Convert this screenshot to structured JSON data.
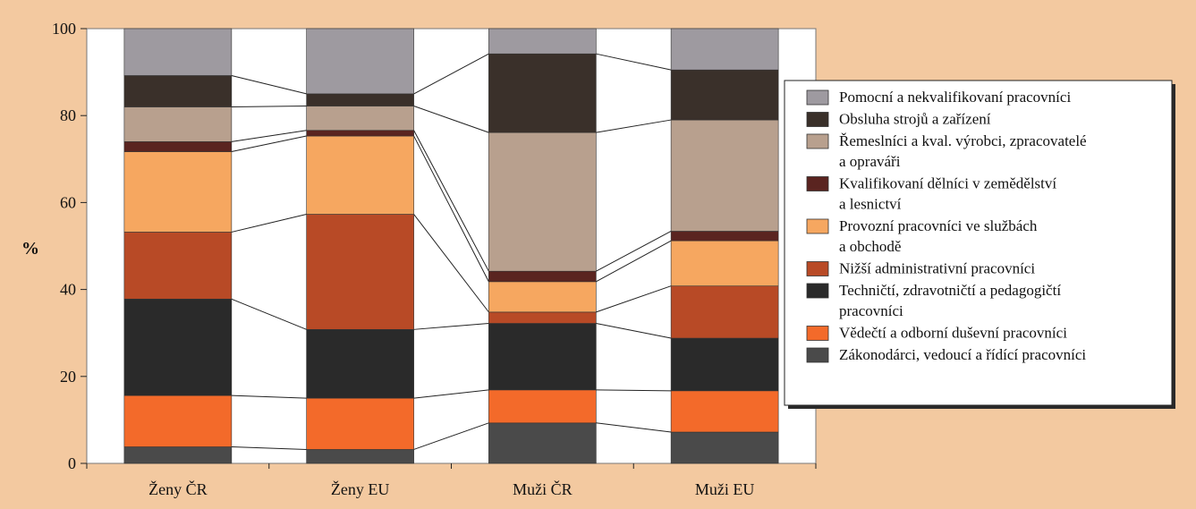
{
  "chart_data": {
    "type": "bar",
    "stacked": true,
    "title": "",
    "xlabel": "",
    "ylabel": "%",
    "ylim": [
      0,
      100
    ],
    "yticks": [
      0,
      20,
      40,
      60,
      80,
      100
    ],
    "grid": false,
    "legend_position": "right",
    "connector_lines": true,
    "categories": [
      "Ženy ČR",
      "Ženy EU",
      "Muži ČR",
      "Muži EU"
    ],
    "series": [
      {
        "name": "Zákonodárci, vedoucí a řídící pracovníci",
        "color": "#4a4a4a",
        "values": [
          3.8,
          3.2,
          9.3,
          7.2
        ]
      },
      {
        "name": "Vědečtí a odborní duševní pracovníci",
        "color": "#f36a2a",
        "values": [
          11.8,
          11.8,
          7.6,
          9.5
        ]
      },
      {
        "name": "Techničtí, zdravotničtí a pedagogičtí pracovníci",
        "color": "#2a2a2a",
        "values": [
          22.2,
          15.8,
          15.3,
          12.1
        ]
      },
      {
        "name": "Nižší administrativní pracovníci",
        "color": "#b84a26",
        "values": [
          15.4,
          26.5,
          2.6,
          12.0
        ]
      },
      {
        "name": "Provozní pracovníci ve službách a obchodě",
        "color": "#f6a760",
        "values": [
          18.5,
          18.0,
          7.0,
          10.4
        ]
      },
      {
        "name": "Kvalifikovaní dělníci v zemědělství a lesnictví",
        "color": "#5a2420",
        "values": [
          2.3,
          1.3,
          2.4,
          2.2
        ]
      },
      {
        "name": "Řemeslníci a kval. výrobci, zpracovatelé a opraváři",
        "color": "#b8a08e",
        "values": [
          8.0,
          5.6,
          31.9,
          25.6
        ]
      },
      {
        "name": "Obsluha strojů a zařízení",
        "color": "#3a302a",
        "values": [
          7.2,
          2.8,
          18.1,
          11.5
        ]
      },
      {
        "name": "Pomocní a nekvalifikovaní pracovníci",
        "color": "#9e9aa0",
        "values": [
          10.8,
          15.0,
          5.8,
          9.5
        ]
      }
    ],
    "legend_lines": [
      [
        "Pomocní a nekvalifikovaní pracovníci"
      ],
      [
        "Obsluha strojů a zařízení"
      ],
      [
        "Řemeslníci a kval. výrobci, zpracovatelé",
        "a opraváři"
      ],
      [
        "Kvalifikovaní dělníci v zemědělství",
        "a lesnictví"
      ],
      [
        "Provozní pracovníci ve službách",
        "a obchodě"
      ],
      [
        "Nižší administrativní pracovníci"
      ],
      [
        "Techničtí, zdravotničtí a pedagogičtí",
        "pracovníci"
      ],
      [
        "Vědečtí a odborní duševní pracovníci"
      ],
      [
        "Zákonodárci, vedoucí a řídící pracovníci"
      ]
    ]
  }
}
